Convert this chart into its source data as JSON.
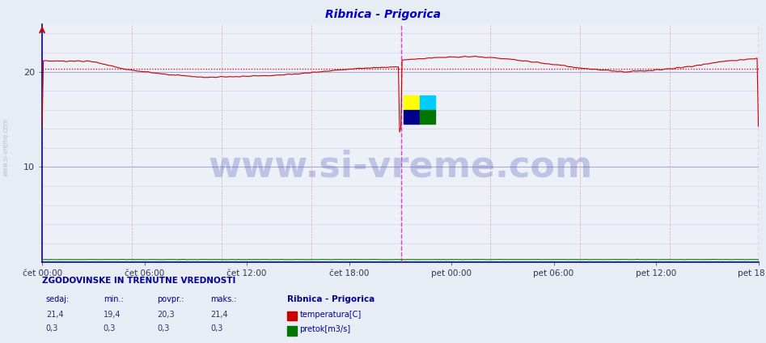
{
  "title": "Ribnica - Prigorica",
  "title_color": "#0000cc",
  "bg_color": "#e8ecf4",
  "plot_bg_color": "#eef0f8",
  "grid_color_major_h": "#aaaadd",
  "grid_color_minor_h": "#ccccee",
  "grid_color_v": "#ddaaaa",
  "y_min": 0,
  "y_max": 25,
  "y_ticks": [
    10,
    20
  ],
  "x_tick_labels": [
    "čet 00:00",
    "čet 06:00",
    "čet 12:00",
    "čet 18:00",
    "pet 00:00",
    "pet 06:00",
    "pet 12:00",
    "pet 18:00"
  ],
  "avg_line_value": 20.3,
  "avg_line_color": "#cc0000",
  "temp_line_color": "#cc0000",
  "flow_line_color": "#007700",
  "vline_day_color": "#cc44cc",
  "vline_end_color": "#cc44cc",
  "left_spine_color": "#0000cc",
  "bottom_spine_color": "#0000aa",
  "watermark_text": "www.si-vreme.com",
  "watermark_color": "#3344aa",
  "watermark_alpha": 0.25,
  "watermark_fontsize": 32,
  "left_label": "www.si-vreme.com",
  "left_label_color": "#aaaacc",
  "footer_header": "ZGODOVINSKE IN TRENUTNE VREDNOSTI",
  "footer_cols": [
    "sedaj:",
    "min.:",
    "povpr.:",
    "maks.:"
  ],
  "footer_temp_vals": [
    "21,4",
    "19,4",
    "20,3",
    "21,4"
  ],
  "footer_flow_vals": [
    "0,3",
    "0,3",
    "0,3",
    "0,3"
  ],
  "footer_station": "Ribnica - Prigorica",
  "footer_temp_label": "temperatura[C]",
  "footer_flow_label": "pretok[m3/s]",
  "footer_color": "#000099",
  "footer_val_color": "#333366",
  "n_points": 576,
  "day_split": 288,
  "logo_colors": [
    "#ffff00",
    "#00ccff",
    "#000088",
    "#007700"
  ]
}
